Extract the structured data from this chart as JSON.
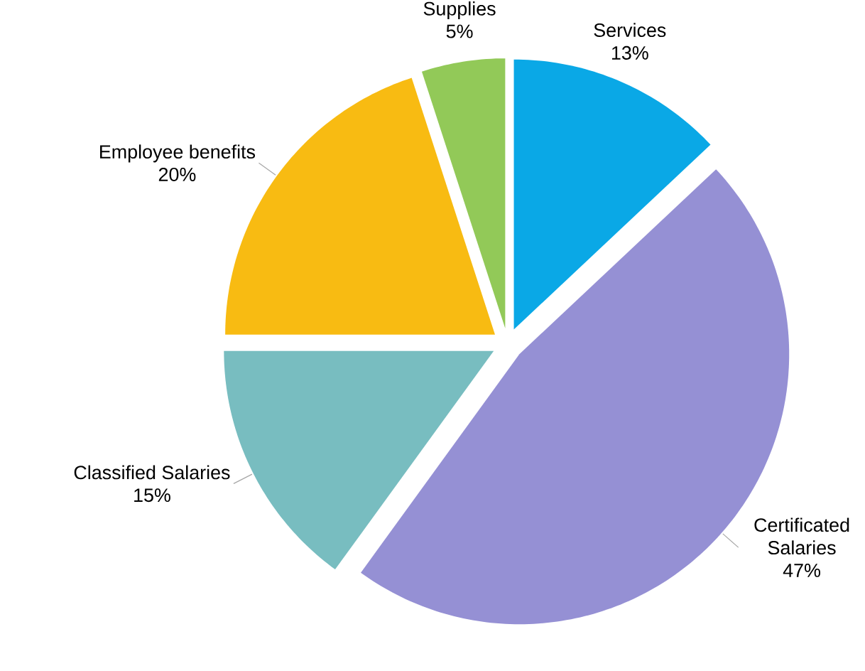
{
  "chart_data": {
    "type": "pie",
    "categories": [
      "Services",
      "Certificated Salaries",
      "Classified Salaries",
      "Employee benefits",
      "Supplies"
    ],
    "values": [
      13,
      47,
      15,
      20,
      5
    ],
    "value_labels": [
      "13%",
      "47%",
      "15%",
      "20%",
      "5%"
    ],
    "colors": [
      "#0aa8e6",
      "#9590d4",
      "#78bdc0",
      "#f8bb12",
      "#92c958"
    ]
  }
}
